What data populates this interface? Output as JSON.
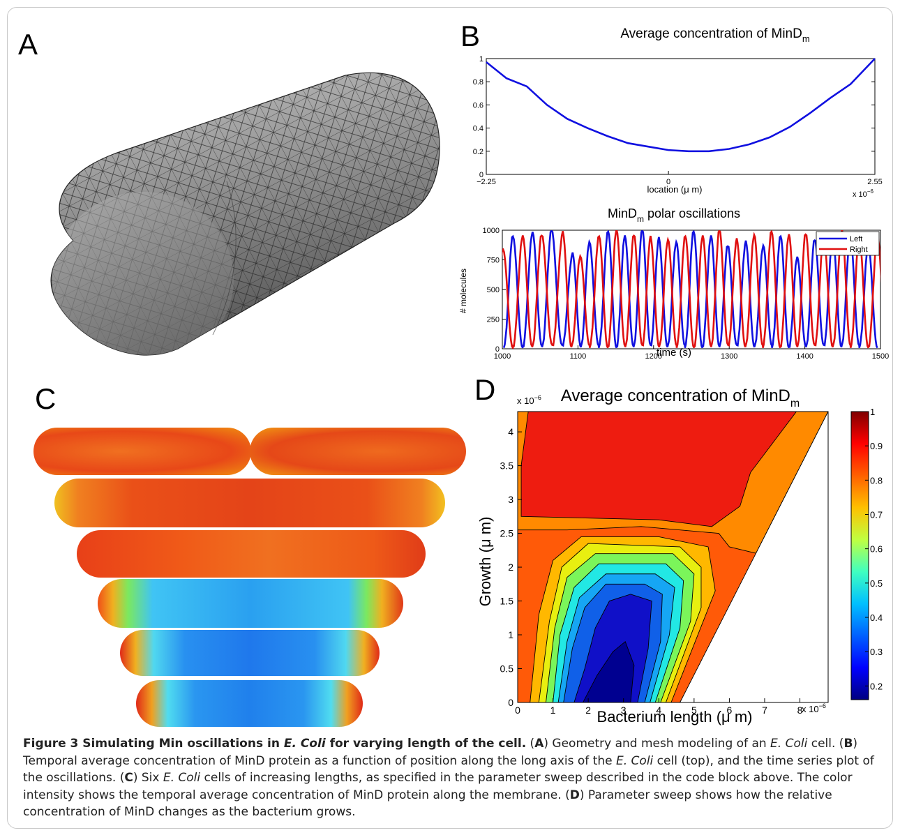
{
  "panels": {
    "a": {
      "letter": "A"
    },
    "b": {
      "letter": "B"
    },
    "c": {
      "letter": "C"
    },
    "d": {
      "letter": "D"
    }
  },
  "chart_data": [
    {
      "id": "B-top",
      "type": "line",
      "title": "Average concentration of MinD",
      "title_sub": "m",
      "xlabel": "location (μ m)",
      "xaxis_multiplier": "x 10",
      "xaxis_exponent": "−6",
      "xlim": [
        -2.25,
        2.55
      ],
      "ylim": [
        0,
        1
      ],
      "xtick_labels": [
        "−2.25",
        "0",
        "2.55"
      ],
      "xtick_values": [
        -2.25,
        0,
        2.55
      ],
      "ytick_labels": [
        "0",
        "0.2",
        "0.4",
        "0.6",
        "0.8",
        "1"
      ],
      "ytick_values": [
        0,
        0.2,
        0.4,
        0.6,
        0.8,
        1
      ],
      "series": [
        {
          "color": "#1010e0",
          "x": [
            -2.25,
            -2.0,
            -1.75,
            -1.5,
            -1.25,
            -1.0,
            -0.75,
            -0.5,
            -0.25,
            0.0,
            0.25,
            0.5,
            0.75,
            1.0,
            1.25,
            1.5,
            1.75,
            2.0,
            2.25,
            2.55
          ],
          "y": [
            0.97,
            0.83,
            0.76,
            0.6,
            0.48,
            0.4,
            0.33,
            0.27,
            0.24,
            0.21,
            0.2,
            0.2,
            0.22,
            0.26,
            0.32,
            0.41,
            0.53,
            0.66,
            0.78,
            1.0
          ]
        }
      ]
    },
    {
      "id": "B-bottom",
      "type": "line",
      "title": "MinD",
      "title_sub": "m",
      "title_tail": " polar oscillations",
      "xlabel": "time (s)",
      "ylabel": "# molecules",
      "xlim": [
        1000,
        1500
      ],
      "ylim": [
        0,
        1000
      ],
      "xtick_labels": [
        "1000",
        "1100",
        "1200",
        "1300",
        "1400",
        "1500"
      ],
      "xtick_values": [
        1000,
        1100,
        1200,
        1300,
        1400,
        1500
      ],
      "ytick_labels": [
        "0",
        "250",
        "500",
        "750",
        "1000"
      ],
      "ytick_values": [
        0,
        250,
        500,
        750,
        1000
      ],
      "legend_position": "top-right",
      "series": [
        {
          "name": "Left",
          "color": "#1010e0",
          "peak_times": [
            1014,
            1040,
            1065,
            1093,
            1115,
            1140,
            1162,
            1185,
            1207,
            1230,
            1253,
            1276,
            1298,
            1322,
            1345,
            1368,
            1390,
            1413,
            1437,
            1460,
            1484
          ],
          "peak_values": [
            960,
            980,
            1000,
            800,
            900,
            1000,
            950,
            1000,
            930,
            900,
            1000,
            950,
            870,
            900,
            870,
            960,
            770,
            920,
            950,
            950,
            880
          ]
        },
        {
          "name": "Right",
          "color": "#e01010",
          "peak_times": [
            1001,
            1027,
            1052,
            1080,
            1103,
            1128,
            1151,
            1174,
            1196,
            1219,
            1242,
            1265,
            1287,
            1310,
            1333,
            1356,
            1379,
            1401,
            1425,
            1449,
            1472,
            1496
          ],
          "peak_values": [
            850,
            950,
            960,
            980,
            780,
            960,
            1000,
            960,
            940,
            920,
            960,
            950,
            1000,
            920,
            960,
            1000,
            960,
            970,
            950,
            1000,
            950,
            950
          ]
        }
      ]
    },
    {
      "id": "D",
      "type": "heatmap",
      "title": "Average concentration of MinD",
      "title_sub": "m",
      "xlabel": "Bacterium length (μ m)",
      "ylabel": "Growth (μ m)",
      "xaxis_multiplier": "x 10",
      "xaxis_exponent": "−6",
      "yaxis_multiplier": "x 10",
      "yaxis_exponent": "−6",
      "xlim": [
        0,
        8.8
      ],
      "ylim": [
        0,
        4.3
      ],
      "xtick_labels": [
        "0",
        "1",
        "2",
        "3",
        "4",
        "5",
        "6",
        "7",
        "8"
      ],
      "xtick_values": [
        0,
        1,
        2,
        3,
        4,
        5,
        6,
        7,
        8
      ],
      "ytick_labels": [
        "0",
        "0.5",
        "1",
        "1.5",
        "2",
        "2.5",
        "3",
        "3.5",
        "4"
      ],
      "ytick_values": [
        0,
        0.5,
        1,
        1.5,
        2,
        2.5,
        3,
        3.5,
        4
      ],
      "colorbar_labels": [
        "1",
        "0.9",
        "0.8",
        "0.7",
        "0.6",
        "0.5",
        "0.4",
        "0.3",
        "0.2"
      ],
      "colorbar_values": [
        1,
        0.9,
        0.8,
        0.7,
        0.6,
        0.5,
        0.4,
        0.3,
        0.2
      ],
      "colorbar_range": [
        0.16,
        1.0
      ],
      "contour_levels": [
        {
          "level": 0.7,
          "color": "#ff8a00",
          "poly": [
            [
              0,
              0
            ],
            [
              4.6,
              0
            ],
            [
              8.8,
              4.3
            ],
            [
              0,
              4.3
            ]
          ]
        },
        {
          "level": 0.8,
          "color": "#ee1c10",
          "poly": [
            [
              0.1,
              2.75
            ],
            [
              4.0,
              2.7
            ],
            [
              5.5,
              2.6
            ],
            [
              6.3,
              2.9
            ],
            [
              6.6,
              3.4
            ],
            [
              7.9,
              4.3
            ],
            [
              0.3,
              4.3
            ],
            [
              0.1,
              3.5
            ]
          ]
        },
        {
          "level": 0.72,
          "color": "#ff5a08",
          "poly": [
            [
              0,
              0
            ],
            [
              4.6,
              0
            ],
            [
              6.8,
              2.2
            ],
            [
              6.0,
              2.3
            ],
            [
              5.7,
              2.5
            ],
            [
              3.5,
              2.6
            ],
            [
              1.4,
              2.55
            ],
            [
              0,
              2.55
            ]
          ]
        },
        {
          "level": 0.65,
          "color": "#ffb800",
          "poly": [
            [
              0.35,
              0
            ],
            [
              4.35,
              0
            ],
            [
              5.6,
              1.65
            ],
            [
              5.4,
              2.3
            ],
            [
              4.0,
              2.45
            ],
            [
              1.8,
              2.45
            ],
            [
              1.0,
              2.1
            ],
            [
              0.6,
              1.3
            ]
          ]
        },
        {
          "level": 0.6,
          "color": "#e8ef10",
          "poly": [
            [
              0.6,
              0
            ],
            [
              4.2,
              0
            ],
            [
              5.2,
              1.4
            ],
            [
              5.2,
              2.0
            ],
            [
              4.6,
              2.3
            ],
            [
              2.0,
              2.35
            ],
            [
              1.25,
              2.0
            ],
            [
              0.9,
              1.2
            ]
          ]
        },
        {
          "level": 0.5,
          "color": "#7bf55a",
          "poly": [
            [
              0.8,
              0
            ],
            [
              4.05,
              0
            ],
            [
              4.9,
              1.2
            ],
            [
              5.0,
              1.9
            ],
            [
              4.4,
              2.2
            ],
            [
              2.2,
              2.2
            ],
            [
              1.4,
              1.85
            ],
            [
              1.05,
              1.1
            ]
          ]
        },
        {
          "level": 0.45,
          "color": "#22e8e4",
          "poly": [
            [
              1.0,
              0
            ],
            [
              3.9,
              0
            ],
            [
              4.6,
              1.1
            ],
            [
              4.7,
              1.8
            ],
            [
              4.2,
              2.05
            ],
            [
              2.3,
              2.05
            ],
            [
              1.6,
              1.7
            ],
            [
              1.2,
              1.0
            ]
          ]
        },
        {
          "level": 0.38,
          "color": "#16a6f4",
          "poly": [
            [
              1.15,
              0
            ],
            [
              3.75,
              0
            ],
            [
              4.3,
              1.0
            ],
            [
              4.45,
              1.7
            ],
            [
              3.9,
              1.9
            ],
            [
              2.5,
              1.9
            ],
            [
              1.75,
              1.55
            ],
            [
              1.4,
              0.9
            ]
          ]
        },
        {
          "level": 0.3,
          "color": "#1060e8",
          "poly": [
            [
              1.3,
              0
            ],
            [
              3.6,
              0
            ],
            [
              4.05,
              0.9
            ],
            [
              4.1,
              1.6
            ],
            [
              3.6,
              1.75
            ],
            [
              2.5,
              1.75
            ],
            [
              1.9,
              1.4
            ],
            [
              1.55,
              0.8
            ]
          ]
        },
        {
          "level": 0.22,
          "color": "#1010c8",
          "poly": [
            [
              1.6,
              0
            ],
            [
              3.4,
              0
            ],
            [
              3.7,
              0.8
            ],
            [
              3.8,
              1.5
            ],
            [
              3.2,
              1.6
            ],
            [
              2.6,
              1.5
            ],
            [
              2.2,
              1.1
            ],
            [
              1.9,
              0.5
            ]
          ]
        },
        {
          "level": 0.16,
          "color": "#000090",
          "poly": [
            [
              1.85,
              0
            ],
            [
              3.2,
              0
            ],
            [
              3.3,
              0.55
            ],
            [
              3.05,
              0.9
            ],
            [
              2.7,
              0.75
            ],
            [
              2.25,
              0.4
            ]
          ]
        }
      ]
    }
  ],
  "caption": {
    "label": "Figure 3 Simulating Min oscillations in ",
    "label_em": "E. Coli",
    "label_tail": " for varying length of the cell.",
    "p1_open": " (",
    "a": "A",
    "p1_text": ") Geometry and mesh modeling of an ",
    "p1_em": "E. Coli",
    "p1_tail": " cell. (",
    "b": "B",
    "p2_text": ") Temporal average concentration of MinD protein as a function of position along the long axis of the ",
    "p2_em": "E. Coli",
    "p2_tail": " cell (top), and the time series plot of the oscillations. (",
    "c": "C",
    "p3_text": ") Six ",
    "p3_em": "E. Coli",
    "p3_tail": " cells of increasing lengths, as specified in the parameter sweep described in the code block above. The color intensity shows the temporal average concentration of MinD protein along the membrane. (",
    "d": "D",
    "p4_text": ") Parameter sweep shows how the relative concentration of MinD changes as the bacterium grows."
  }
}
